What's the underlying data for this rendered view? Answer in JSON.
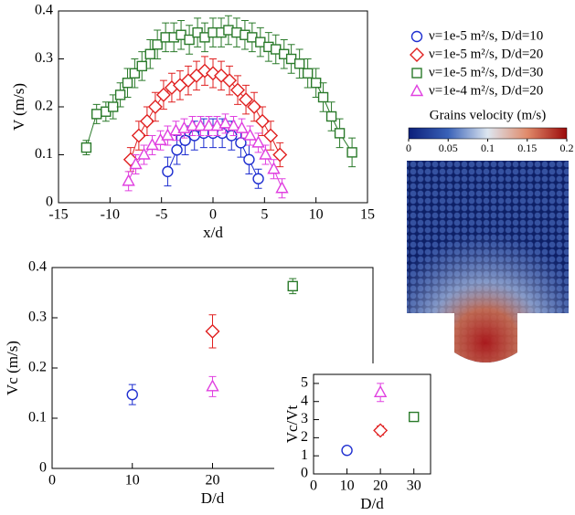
{
  "chart_data": [
    {
      "type": "errorbar",
      "xlabel": "x/d",
      "ylabel": "V (m/s)",
      "xlim": [
        -15,
        15
      ],
      "xticks": [
        -15,
        -10,
        -5,
        0,
        5,
        10,
        15
      ],
      "ylim": [
        0,
        0.4
      ],
      "yticks": [
        0,
        0.1,
        0.2,
        0.3,
        0.4
      ],
      "legend": "right",
      "series": [
        {
          "name": "ν=1e-5 m²/s, D/d=10",
          "color": "#1f2fd0",
          "marker": "circle",
          "x": [
            -4.4,
            -3.5,
            -2.7,
            -1.8,
            -0.9,
            0,
            0.9,
            1.8,
            2.7,
            3.5,
            4.4
          ],
          "values": [
            0.065,
            0.11,
            0.13,
            0.14,
            0.145,
            0.145,
            0.145,
            0.14,
            0.125,
            0.09,
            0.05
          ],
          "errors": [
            0.03,
            0.03,
            0.03,
            0.03,
            0.03,
            0.03,
            0.03,
            0.03,
            0.03,
            0.03,
            0.02
          ]
        },
        {
          "name": "ν=1e-5 m²/s, D/d=20",
          "color": "#e02020",
          "marker": "diamond",
          "x": [
            -8,
            -7.2,
            -6.4,
            -5.6,
            -4.8,
            -4,
            -3.2,
            -2.4,
            -1.6,
            -0.8,
            0,
            0.8,
            1.6,
            2.4,
            3.2,
            4,
            4.8,
            5.6,
            6.5
          ],
          "values": [
            0.09,
            0.14,
            0.17,
            0.2,
            0.225,
            0.24,
            0.245,
            0.255,
            0.265,
            0.275,
            0.27,
            0.265,
            0.255,
            0.235,
            0.215,
            0.2,
            0.17,
            0.14,
            0.1
          ],
          "errors": [
            0.025,
            0.03,
            0.03,
            0.03,
            0.03,
            0.03,
            0.03,
            0.03,
            0.03,
            0.03,
            0.03,
            0.03,
            0.03,
            0.03,
            0.03,
            0.03,
            0.03,
            0.03,
            0.025
          ]
        },
        {
          "name": "ν=1e-5 m²/s, D/d=30",
          "color": "#2a7a2a",
          "marker": "square",
          "x": [
            -12.3,
            -11.3,
            -10.4,
            -9.7,
            -9.0,
            -8.3,
            -7.6,
            -6.9,
            -6.1,
            -5.4,
            -4.6,
            -3.8,
            -3.1,
            -2.3,
            -1.5,
            -0.8,
            0,
            0.8,
            1.5,
            2.3,
            3.1,
            3.8,
            4.6,
            5.4,
            6.1,
            6.9,
            7.6,
            8.4,
            9.2,
            10,
            10.7,
            11.5,
            12.3,
            13.5
          ],
          "values": [
            0.115,
            0.185,
            0.19,
            0.2,
            0.225,
            0.25,
            0.27,
            0.285,
            0.31,
            0.33,
            0.345,
            0.345,
            0.35,
            0.34,
            0.355,
            0.345,
            0.355,
            0.355,
            0.36,
            0.355,
            0.35,
            0.345,
            0.335,
            0.325,
            0.32,
            0.31,
            0.3,
            0.29,
            0.27,
            0.25,
            0.22,
            0.18,
            0.145,
            0.105
          ],
          "errors": [
            0.015,
            0.02,
            0.02,
            0.025,
            0.025,
            0.03,
            0.03,
            0.03,
            0.03,
            0.03,
            0.03,
            0.03,
            0.03,
            0.03,
            0.03,
            0.03,
            0.03,
            0.03,
            0.03,
            0.03,
            0.03,
            0.03,
            0.03,
            0.03,
            0.03,
            0.03,
            0.03,
            0.03,
            0.03,
            0.03,
            0.03,
            0.03,
            0.03,
            0.03
          ]
        },
        {
          "name": "ν=1e-4 m²/s, D/d=20",
          "color": "#e040e0",
          "marker": "triangle",
          "x": [
            -8.2,
            -7.5,
            -6.7,
            -5.9,
            -5.1,
            -4.4,
            -3.6,
            -2.8,
            -2,
            -1.2,
            -0.4,
            0.4,
            1.2,
            2,
            2.8,
            3.6,
            4.4,
            5.1,
            5.9,
            6.7
          ],
          "values": [
            0.045,
            0.08,
            0.1,
            0.12,
            0.13,
            0.14,
            0.15,
            0.155,
            0.16,
            0.16,
            0.16,
            0.16,
            0.165,
            0.16,
            0.155,
            0.14,
            0.125,
            0.1,
            0.07,
            0.03
          ],
          "errors": [
            0.02,
            0.02,
            0.02,
            0.02,
            0.02,
            0.02,
            0.02,
            0.02,
            0.02,
            0.02,
            0.02,
            0.02,
            0.02,
            0.02,
            0.02,
            0.02,
            0.02,
            0.02,
            0.02,
            0.02
          ]
        }
      ]
    },
    {
      "type": "colorbar",
      "title": "Grains velocity (m/s)",
      "clim": [
        0,
        0.2
      ],
      "cticks": [
        0,
        0.05,
        0.1,
        0.15,
        0.2
      ],
      "colors": [
        "#0b1f7a",
        "#3a62b8",
        "#dde6f0",
        "#e08a6a",
        "#9b0a0a"
      ]
    },
    {
      "type": "scatter",
      "xlabel": "D/d",
      "ylabel": "Vc (m/s)",
      "xlim": [
        0,
        40
      ],
      "xticks": [
        0,
        10,
        20
      ],
      "ylim": [
        0,
        0.4
      ],
      "yticks": [
        0,
        0.1,
        0.2,
        0.3,
        0.4
      ],
      "series": [
        {
          "color": "#1f2fd0",
          "marker": "circle",
          "x": [
            10
          ],
          "values": [
            0.147
          ],
          "errors": [
            0.02
          ]
        },
        {
          "color": "#e02020",
          "marker": "diamond",
          "x": [
            20
          ],
          "values": [
            0.273
          ],
          "errors": [
            0.033
          ]
        },
        {
          "color": "#2a7a2a",
          "marker": "square",
          "x": [
            30
          ],
          "values": [
            0.363
          ],
          "errors": [
            0.015
          ]
        },
        {
          "color": "#e040e0",
          "marker": "triangle",
          "x": [
            20
          ],
          "values": [
            0.163
          ],
          "errors": [
            0.02
          ]
        }
      ]
    },
    {
      "type": "scatter",
      "xlabel": "D/d",
      "ylabel": "Vc/Vt",
      "xlim": [
        0,
        35
      ],
      "xticks": [
        0,
        10,
        20,
        30
      ],
      "ylim": [
        0,
        5.5
      ],
      "yticks": [
        0,
        1,
        2,
        3,
        4,
        5
      ],
      "series": [
        {
          "color": "#1f2fd0",
          "marker": "circle",
          "x": [
            10
          ],
          "values": [
            1.3
          ],
          "errors": [
            0.15
          ]
        },
        {
          "color": "#e02020",
          "marker": "diamond",
          "x": [
            20
          ],
          "values": [
            2.4
          ],
          "errors": [
            0.25
          ]
        },
        {
          "color": "#2a7a2a",
          "marker": "square",
          "x": [
            30
          ],
          "values": [
            3.15
          ],
          "errors": [
            0.1
          ]
        },
        {
          "color": "#e040e0",
          "marker": "triangle",
          "x": [
            20
          ],
          "values": [
            4.5
          ],
          "errors": [
            0.5
          ]
        }
      ]
    }
  ]
}
